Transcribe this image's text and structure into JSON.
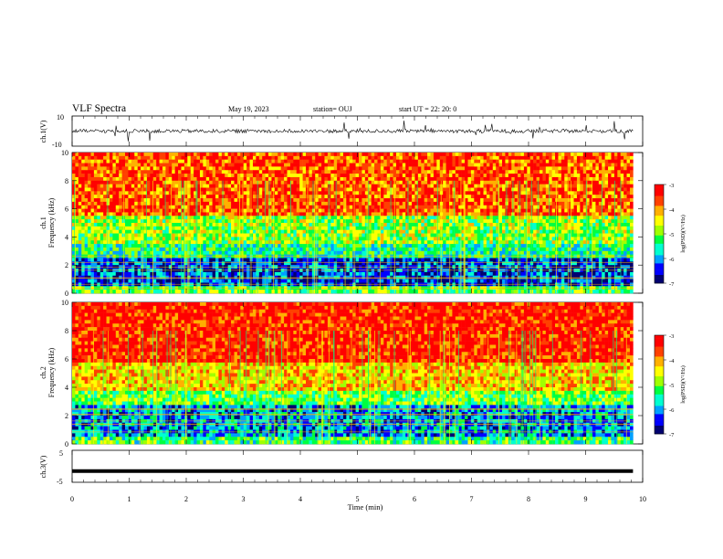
{
  "header": {
    "title": "VLF Spectra",
    "date": "May 19, 2023",
    "station": "station= OUJ",
    "start_ut": "start  UT  =   22: 20: 0"
  },
  "colors": {
    "spectrogram_scale": [
      "#000070",
      "#0000ff",
      "#00a0ff",
      "#00ffd0",
      "#00ff40",
      "#a0ff00",
      "#ffff00",
      "#ffb000",
      "#ff4000",
      "#ff0000",
      "#ffffff"
    ],
    "trace": "#000000"
  },
  "chart_data": [
    {
      "type": "line",
      "panel": "ch1-waveform",
      "ylabel": "ch.1(V)",
      "ytick_labels": [
        "10",
        "-10"
      ],
      "ylim": [
        -10,
        10
      ],
      "xlim": [
        0,
        10
      ],
      "description_values": {
        "baseline_v": 0,
        "typical_amplitude_v": 2
      }
    },
    {
      "type": "heatmap",
      "panel": "ch1-spectrogram",
      "ylabel": "ch.1\nFrequency  (kHz)",
      "ytick_labels": [
        "0",
        "2",
        "4",
        "6",
        "8",
        "10"
      ],
      "ylim": [
        0,
        10
      ],
      "xlim": [
        0,
        9.83
      ],
      "colorbar": {
        "label": "log(PSD)(V²/Hz)",
        "tick_labels": [
          "-3",
          "-4",
          "-5",
          "-6",
          "-7"
        ],
        "range": [
          -7,
          -3
        ]
      },
      "bands_khz": [
        {
          "from": 0.0,
          "to": 0.5,
          "level": -5.0
        },
        {
          "from": 0.5,
          "to": 2.6,
          "level": -6.3
        },
        {
          "from": 2.6,
          "to": 3.6,
          "level": -5.4
        },
        {
          "from": 3.6,
          "to": 5.6,
          "level": -4.8
        },
        {
          "from": 5.6,
          "to": 10.0,
          "level": -3.6
        }
      ]
    },
    {
      "type": "heatmap",
      "panel": "ch2-spectrogram",
      "ylabel": "ch.2\nFrequency  (kHz)",
      "ytick_labels": [
        "0",
        "2",
        "4",
        "6",
        "8",
        "10"
      ],
      "ylim": [
        0,
        10
      ],
      "xlim": [
        0,
        9.83
      ],
      "colorbar": {
        "label": "log(PSD)(V²/Hz)",
        "tick_labels": [
          "-3",
          "-4",
          "-5",
          "-6",
          "-7"
        ],
        "range": [
          -7,
          -3
        ]
      },
      "bands_khz": [
        {
          "from": 0.0,
          "to": 0.6,
          "level": -5.2
        },
        {
          "from": 0.6,
          "to": 2.8,
          "level": -6.0
        },
        {
          "from": 2.8,
          "to": 3.8,
          "level": -5.0
        },
        {
          "from": 3.8,
          "to": 5.8,
          "level": -4.2
        },
        {
          "from": 5.8,
          "to": 10.0,
          "level": -3.3
        }
      ]
    },
    {
      "type": "line",
      "panel": "ch3-waveform",
      "ylabel": "ch.3(V)",
      "ytick_labels": [
        "5",
        "-5"
      ],
      "ylim": [
        -5,
        5
      ],
      "xlim": [
        0,
        10
      ],
      "x": [
        0,
        9.83
      ],
      "y": [
        -1.5,
        -1.5
      ]
    }
  ],
  "xaxis": {
    "label": "Time  (min)",
    "tick_labels": [
      "0",
      "1",
      "2",
      "3",
      "4",
      "5",
      "6",
      "7",
      "8",
      "9",
      "10"
    ],
    "range": [
      0,
      10
    ]
  }
}
